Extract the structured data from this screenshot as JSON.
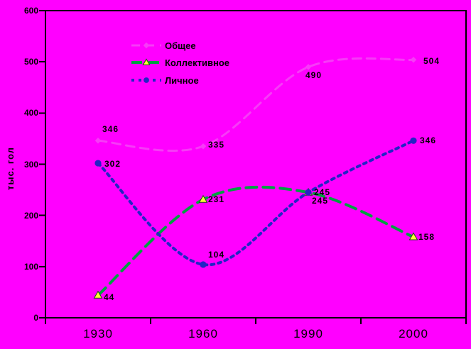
{
  "page": {
    "background": "#ff00ff",
    "text_color": "#000000"
  },
  "chart_data": {
    "type": "line",
    "smoothed": true,
    "categories": [
      "1930",
      "1960",
      "1990",
      "2000"
    ],
    "xlabel": "",
    "ylabel": "тыс. гол",
    "ylim": [
      0,
      600
    ],
    "yticks": [
      0,
      100,
      200,
      300,
      400,
      500,
      600
    ],
    "grid": false,
    "legend_position": "inside-top-center",
    "frame_color": "#000000",
    "series": [
      {
        "name": "Общее",
        "values": [
          346,
          335,
          490,
          504
        ],
        "color": "#f63cf6",
        "style": "dashed",
        "marker": "diamond",
        "marker_color": "#f63cf6",
        "label_offsets": [
          [
            6,
            -22
          ],
          [
            7,
            -8
          ],
          [
            -4,
            6
          ],
          [
            14,
            -4
          ]
        ]
      },
      {
        "name": "Коллективное",
        "values": [
          44,
          231,
          245,
          158
        ],
        "color": "#00a041",
        "style": "long-dash",
        "marker": "triangle",
        "marker_color": "#ffff33",
        "label_offsets": [
          [
            8,
            -3
          ],
          [
            7,
            -6
          ],
          [
            5,
            6
          ],
          [
            7,
            -6
          ]
        ]
      },
      {
        "name": "Личное",
        "values": [
          302,
          104,
          245,
          346
        ],
        "color": "#2424c4",
        "style": "dotted",
        "marker": "circle",
        "marker_color": "#2424c4",
        "label_offsets": [
          [
            9,
            -5
          ],
          [
            7,
            -20
          ],
          [
            8,
            -6
          ],
          [
            9,
            -6
          ]
        ]
      }
    ]
  }
}
